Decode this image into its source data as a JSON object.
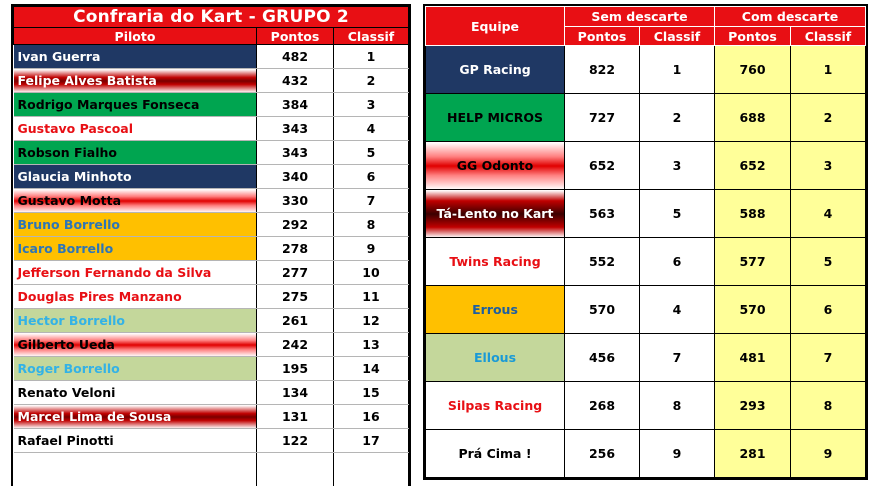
{
  "left": {
    "title": "Confraria do Kart - GRUPO 2",
    "headers": {
      "piloto": "Piloto",
      "pontos": "Pontos",
      "classif": "Classif"
    },
    "rows": [
      {
        "name": "Ivan Guerra",
        "pontos": "482",
        "classif": "1",
        "style": "s-navy"
      },
      {
        "name": "Felipe Alves Batista",
        "pontos": "432",
        "classif": "2",
        "style": "s-dred"
      },
      {
        "name": "Rodrigo Marques Fonseca",
        "pontos": "384",
        "classif": "3",
        "style": "s-green"
      },
      {
        "name": "Gustavo Pascoal",
        "pontos": "343",
        "classif": "4",
        "style": "s-white-red"
      },
      {
        "name": "Robson Fialho",
        "pontos": "343",
        "classif": "5",
        "style": "s-green"
      },
      {
        "name": "Glaucia Minhoto",
        "pontos": "340",
        "classif": "6",
        "style": "s-navy"
      },
      {
        "name": "Gustavo Motta",
        "pontos": "330",
        "classif": "7",
        "style": "s-pinkred"
      },
      {
        "name": "Bruno Borrello",
        "pontos": "292",
        "classif": "8",
        "style": "s-gold"
      },
      {
        "name": "Icaro Borrello",
        "pontos": "278",
        "classif": "9",
        "style": "s-gold"
      },
      {
        "name": "Jefferson Fernando da Silva",
        "pontos": "277",
        "classif": "10",
        "style": "s-white-red"
      },
      {
        "name": "Douglas Pires Manzano",
        "pontos": "275",
        "classif": "11",
        "style": "s-white-red"
      },
      {
        "name": "Hector Borrello",
        "pontos": "261",
        "classif": "12",
        "style": "s-sage"
      },
      {
        "name": "Gilberto Ueda",
        "pontos": "242",
        "classif": "13",
        "style": "s-pinkred"
      },
      {
        "name": "Roger Borrello",
        "pontos": "195",
        "classif": "14",
        "style": "s-sage"
      },
      {
        "name": "Renato Veloni",
        "pontos": "134",
        "classif": "15",
        "style": "s-white-blk"
      },
      {
        "name": "Marcel Lima de Sousa",
        "pontos": "131",
        "classif": "16",
        "style": "s-dred"
      },
      {
        "name": "Rafael Pinotti",
        "pontos": "122",
        "classif": "17",
        "style": "s-white-blk"
      }
    ]
  },
  "right": {
    "headers": {
      "equipe": "Equipe",
      "sem": "Sem descarte",
      "com": "Com descarte",
      "pontos": "Pontos",
      "classif": "Classif"
    },
    "rows": [
      {
        "team": "GP Racing",
        "sem_pontos": "822",
        "sem_classif": "1",
        "com_pontos": "760",
        "com_classif": "1",
        "style": "s-navy"
      },
      {
        "team": "HELP MICROS",
        "sem_pontos": "727",
        "sem_classif": "2",
        "com_pontos": "688",
        "com_classif": "2",
        "style": "s-green-t"
      },
      {
        "team": "GG Odonto",
        "sem_pontos": "652",
        "sem_classif": "3",
        "com_pontos": "652",
        "com_classif": "3",
        "style": "s-pinkred"
      },
      {
        "team": "Tá-Lento no Kart",
        "sem_pontos": "563",
        "sem_classif": "5",
        "com_pontos": "588",
        "com_classif": "4",
        "style": "s-dred-t"
      },
      {
        "team": "Twins Racing",
        "sem_pontos": "552",
        "sem_classif": "6",
        "com_pontos": "577",
        "com_classif": "5",
        "style": "s-white-red"
      },
      {
        "team": "Errous",
        "sem_pontos": "570",
        "sem_classif": "4",
        "com_pontos": "570",
        "com_classif": "6",
        "style": "s-gold-t"
      },
      {
        "team": "Ellous",
        "sem_pontos": "456",
        "sem_classif": "7",
        "com_pontos": "481",
        "com_classif": "7",
        "style": "s-sage-t"
      },
      {
        "team": "Silpas Racing",
        "sem_pontos": "268",
        "sem_classif": "8",
        "com_pontos": "293",
        "com_classif": "8",
        "style": "s-white-red"
      },
      {
        "team": "Prá Cima !",
        "sem_pontos": "256",
        "sem_classif": "9",
        "com_pontos": "281",
        "com_classif": "9",
        "style": "s-white-blk"
      }
    ]
  }
}
